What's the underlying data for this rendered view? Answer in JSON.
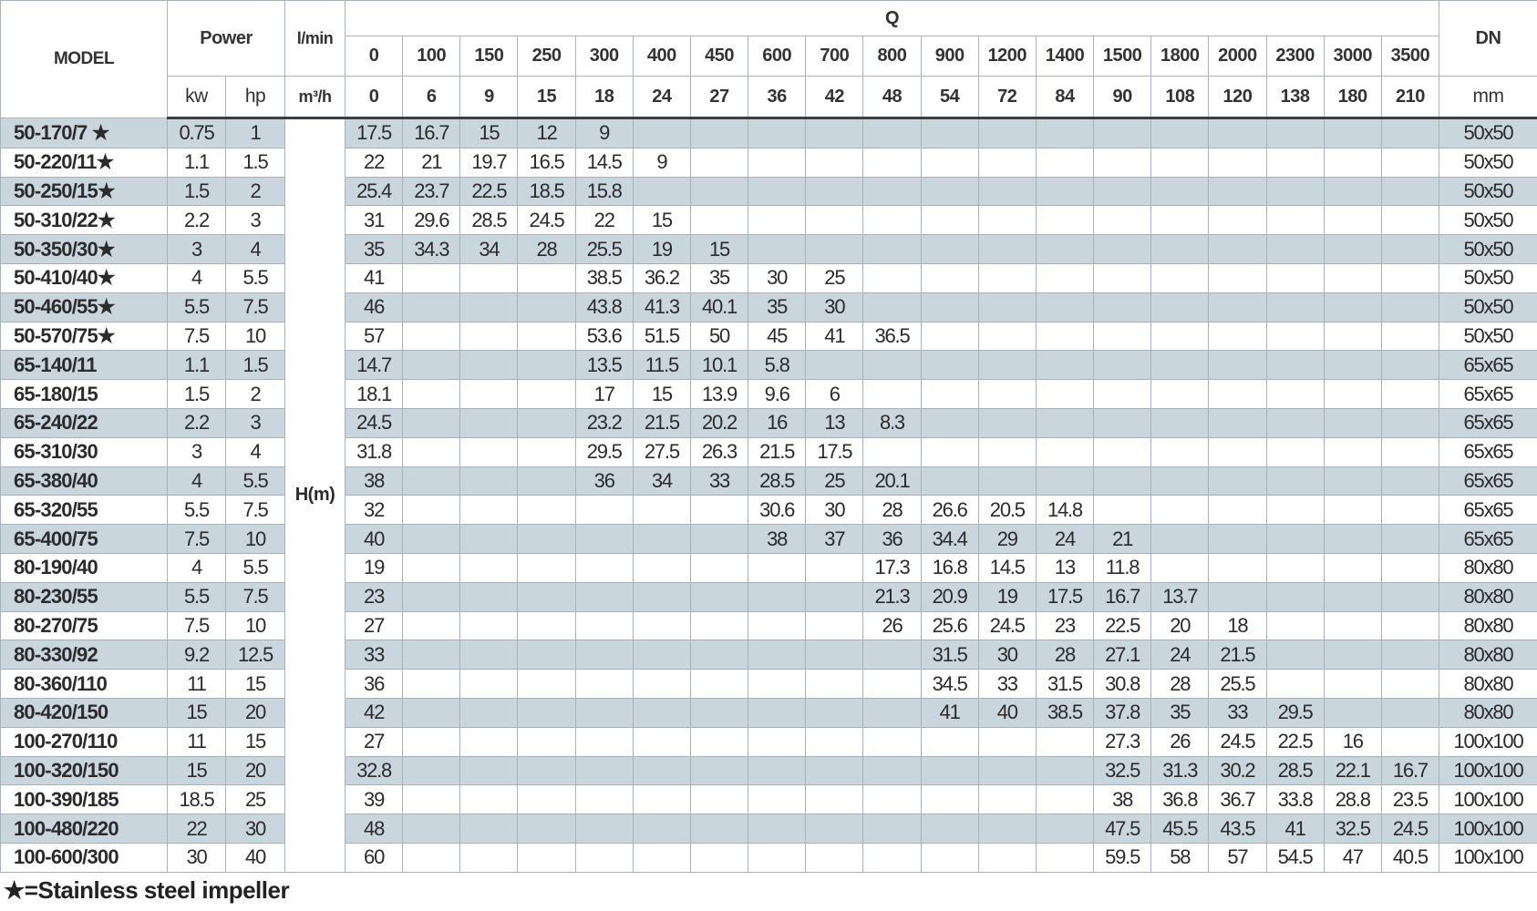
{
  "header": {
    "model": "MODEL",
    "power": "Power",
    "lmin": "l/min",
    "q": "Q",
    "dn": "DN",
    "kw": "kw",
    "hp": "hp",
    "m3h": "m³/h",
    "mm": "mm",
    "hm": "H(m)",
    "q_lmin": [
      "0",
      "100",
      "150",
      "250",
      "300",
      "400",
      "450",
      "600",
      "700",
      "800",
      "900",
      "1200",
      "1400",
      "1500",
      "1800",
      "2000",
      "2300",
      "3000",
      "3500"
    ],
    "q_m3h": [
      "0",
      "6",
      "9",
      "15",
      "18",
      "24",
      "27",
      "36",
      "42",
      "48",
      "54",
      "72",
      "84",
      "90",
      "108",
      "120",
      "138",
      "180",
      "210"
    ]
  },
  "stripe_color": "#cad6de",
  "rows": [
    {
      "model": "50-170/7 ★",
      "kw": "0.75",
      "hp": "1",
      "h": [
        "17.5",
        "16.7",
        "15",
        "12",
        "9",
        "",
        "",
        "",
        "",
        "",
        "",
        "",
        "",
        "",
        "",
        "",
        "",
        "",
        ""
      ],
      "dn": "50x50"
    },
    {
      "model": "50-220/11★",
      "kw": "1.1",
      "hp": "1.5",
      "h": [
        "22",
        "21",
        "19.7",
        "16.5",
        "14.5",
        "9",
        "",
        "",
        "",
        "",
        "",
        "",
        "",
        "",
        "",
        "",
        "",
        "",
        ""
      ],
      "dn": "50x50"
    },
    {
      "model": "50-250/15★",
      "kw": "1.5",
      "hp": "2",
      "h": [
        "25.4",
        "23.7",
        "22.5",
        "18.5",
        "15.8",
        "",
        "",
        "",
        "",
        "",
        "",
        "",
        "",
        "",
        "",
        "",
        "",
        "",
        ""
      ],
      "dn": "50x50"
    },
    {
      "model": "50-310/22★",
      "kw": "2.2",
      "hp": "3",
      "h": [
        "31",
        "29.6",
        "28.5",
        "24.5",
        "22",
        "15",
        "",
        "",
        "",
        "",
        "",
        "",
        "",
        "",
        "",
        "",
        "",
        "",
        ""
      ],
      "dn": "50x50"
    },
    {
      "model": "50-350/30★",
      "kw": "3",
      "hp": "4",
      "h": [
        "35",
        "34.3",
        "34",
        "28",
        "25.5",
        "19",
        "15",
        "",
        "",
        "",
        "",
        "",
        "",
        "",
        "",
        "",
        "",
        "",
        ""
      ],
      "dn": "50x50"
    },
    {
      "model": "50-410/40★",
      "kw": "4",
      "hp": "5.5",
      "h": [
        "41",
        "",
        "",
        "",
        "38.5",
        "36.2",
        "35",
        "30",
        "25",
        "",
        "",
        "",
        "",
        "",
        "",
        "",
        "",
        "",
        ""
      ],
      "dn": "50x50"
    },
    {
      "model": "50-460/55★",
      "kw": "5.5",
      "hp": "7.5",
      "h": [
        "46",
        "",
        "",
        "",
        "43.8",
        "41.3",
        "40.1",
        "35",
        "30",
        "",
        "",
        "",
        "",
        "",
        "",
        "",
        "",
        "",
        ""
      ],
      "dn": "50x50"
    },
    {
      "model": "50-570/75★",
      "kw": "7.5",
      "hp": "10",
      "h": [
        "57",
        "",
        "",
        "",
        "53.6",
        "51.5",
        "50",
        "45",
        "41",
        "36.5",
        "",
        "",
        "",
        "",
        "",
        "",
        "",
        "",
        ""
      ],
      "dn": "50x50"
    },
    {
      "model": "65-140/11",
      "kw": "1.1",
      "hp": "1.5",
      "h": [
        "14.7",
        "",
        "",
        "",
        "13.5",
        "11.5",
        "10.1",
        "5.8",
        "",
        "",
        "",
        "",
        "",
        "",
        "",
        "",
        "",
        "",
        ""
      ],
      "dn": "65x65"
    },
    {
      "model": "65-180/15",
      "kw": "1.5",
      "hp": "2",
      "h": [
        "18.1",
        "",
        "",
        "",
        "17",
        "15",
        "13.9",
        "9.6",
        "6",
        "",
        "",
        "",
        "",
        "",
        "",
        "",
        "",
        "",
        ""
      ],
      "dn": "65x65"
    },
    {
      "model": "65-240/22",
      "kw": "2.2",
      "hp": "3",
      "h": [
        "24.5",
        "",
        "",
        "",
        "23.2",
        "21.5",
        "20.2",
        "16",
        "13",
        "8.3",
        "",
        "",
        "",
        "",
        "",
        "",
        "",
        "",
        ""
      ],
      "dn": "65x65"
    },
    {
      "model": "65-310/30",
      "kw": "3",
      "hp": "4",
      "h": [
        "31.8",
        "",
        "",
        "",
        "29.5",
        "27.5",
        "26.3",
        "21.5",
        "17.5",
        "",
        "",
        "",
        "",
        "",
        "",
        "",
        "",
        "",
        ""
      ],
      "dn": "65x65"
    },
    {
      "model": "65-380/40",
      "kw": "4",
      "hp": "5.5",
      "h": [
        "38",
        "",
        "",
        "",
        "36",
        "34",
        "33",
        "28.5",
        "25",
        "20.1",
        "",
        "",
        "",
        "",
        "",
        "",
        "",
        "",
        ""
      ],
      "dn": "65x65"
    },
    {
      "model": "65-320/55",
      "kw": "5.5",
      "hp": "7.5",
      "h": [
        "32",
        "",
        "",
        "",
        "",
        "",
        "",
        "30.6",
        "30",
        "28",
        "26.6",
        "20.5",
        "14.8",
        "",
        "",
        "",
        "",
        "",
        ""
      ],
      "dn": "65x65"
    },
    {
      "model": "65-400/75",
      "kw": "7.5",
      "hp": "10",
      "h": [
        "40",
        "",
        "",
        "",
        "",
        "",
        "",
        "38",
        "37",
        "36",
        "34.4",
        "29",
        "24",
        "21",
        "",
        "",
        "",
        "",
        ""
      ],
      "dn": "65x65"
    },
    {
      "model": "80-190/40",
      "kw": "4",
      "hp": "5.5",
      "h": [
        "19",
        "",
        "",
        "",
        "",
        "",
        "",
        "",
        "",
        "17.3",
        "16.8",
        "14.5",
        "13",
        "11.8",
        "",
        "",
        "",
        "",
        ""
      ],
      "dn": "80x80"
    },
    {
      "model": "80-230/55",
      "kw": "5.5",
      "hp": "7.5",
      "h": [
        "23",
        "",
        "",
        "",
        "",
        "",
        "",
        "",
        "",
        "21.3",
        "20.9",
        "19",
        "17.5",
        "16.7",
        "13.7",
        "",
        "",
        "",
        ""
      ],
      "dn": "80x80"
    },
    {
      "model": "80-270/75",
      "kw": "7.5",
      "hp": "10",
      "h": [
        "27",
        "",
        "",
        "",
        "",
        "",
        "",
        "",
        "",
        "26",
        "25.6",
        "24.5",
        "23",
        "22.5",
        "20",
        "18",
        "",
        "",
        ""
      ],
      "dn": "80x80"
    },
    {
      "model": "80-330/92",
      "kw": "9.2",
      "hp": "12.5",
      "h": [
        "33",
        "",
        "",
        "",
        "",
        "",
        "",
        "",
        "",
        "",
        "31.5",
        "30",
        "28",
        "27.1",
        "24",
        "21.5",
        "",
        "",
        ""
      ],
      "dn": "80x80"
    },
    {
      "model": "80-360/110",
      "kw": "11",
      "hp": "15",
      "h": [
        "36",
        "",
        "",
        "",
        "",
        "",
        "",
        "",
        "",
        "",
        "34.5",
        "33",
        "31.5",
        "30.8",
        "28",
        "25.5",
        "",
        "",
        ""
      ],
      "dn": "80x80"
    },
    {
      "model": "80-420/150",
      "kw": "15",
      "hp": "20",
      "h": [
        "42",
        "",
        "",
        "",
        "",
        "",
        "",
        "",
        "",
        "",
        "41",
        "40",
        "38.5",
        "37.8",
        "35",
        "33",
        "29.5",
        "",
        ""
      ],
      "dn": "80x80"
    },
    {
      "model": "100-270/110",
      "kw": "11",
      "hp": "15",
      "h": [
        "27",
        "",
        "",
        "",
        "",
        "",
        "",
        "",
        "",
        "",
        "",
        "",
        "",
        "27.3",
        "26",
        "24.5",
        "22.5",
        "16",
        ""
      ],
      "dn": "100x100"
    },
    {
      "model": "100-320/150",
      "kw": "15",
      "hp": "20",
      "h": [
        "32.8",
        "",
        "",
        "",
        "",
        "",
        "",
        "",
        "",
        "",
        "",
        "",
        "",
        "32.5",
        "31.3",
        "30.2",
        "28.5",
        "22.1",
        "16.7"
      ],
      "dn": "100x100"
    },
    {
      "model": "100-390/185",
      "kw": "18.5",
      "hp": "25",
      "h": [
        "39",
        "",
        "",
        "",
        "",
        "",
        "",
        "",
        "",
        "",
        "",
        "",
        "",
        "38",
        "36.8",
        "36.7",
        "33.8",
        "28.8",
        "23.5"
      ],
      "dn": "100x100"
    },
    {
      "model": "100-480/220",
      "kw": "22",
      "hp": "30",
      "h": [
        "48",
        "",
        "",
        "",
        "",
        "",
        "",
        "",
        "",
        "",
        "",
        "",
        "",
        "47.5",
        "45.5",
        "43.5",
        "41",
        "32.5",
        "24.5"
      ],
      "dn": "100x100"
    },
    {
      "model": "100-600/300",
      "kw": "30",
      "hp": "40",
      "h": [
        "60",
        "",
        "",
        "",
        "",
        "",
        "",
        "",
        "",
        "",
        "",
        "",
        "",
        "59.5",
        "58",
        "57",
        "54.5",
        "47",
        "40.5"
      ],
      "dn": "100x100"
    }
  ],
  "footnote": "★=Stainless steel impeller"
}
